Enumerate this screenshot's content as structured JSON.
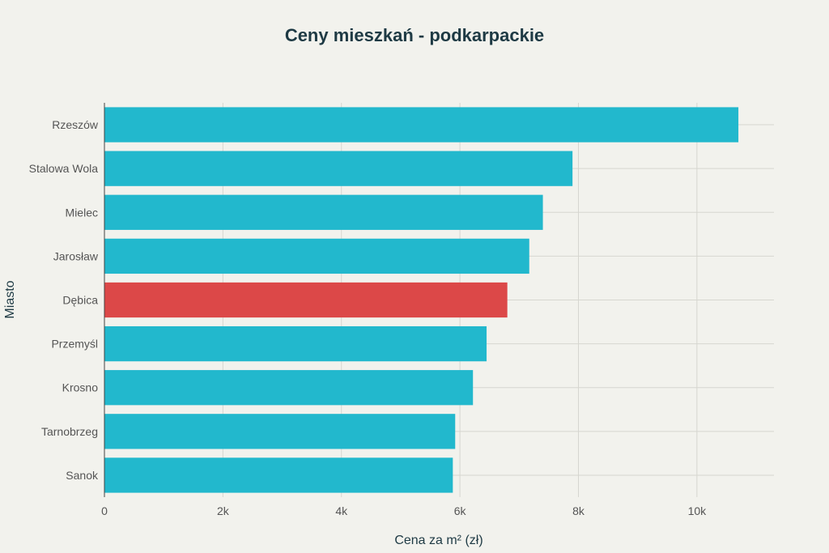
{
  "chart_data": {
    "type": "bar",
    "orientation": "horizontal",
    "title": "Ceny mieszkań - podkarpackie",
    "xlabel": "Cena za m² (zł)",
    "ylabel": "Miasto",
    "xlim": [
      0,
      11300
    ],
    "x_ticks": [
      0,
      2000,
      4000,
      6000,
      8000,
      10000
    ],
    "x_tick_labels": [
      "0",
      "2k",
      "4k",
      "6k",
      "8k",
      "10k"
    ],
    "grid": true,
    "categories": [
      "Rzeszów",
      "Stalowa Wola",
      "Mielec",
      "Jarosław",
      "Dębica",
      "Przemyśl",
      "Krosno",
      "Tarnobrzeg",
      "Sanok"
    ],
    "values": [
      10700,
      7900,
      7400,
      7170,
      6800,
      6450,
      6220,
      5920,
      5880
    ],
    "highlight": "Dębica",
    "colors": {
      "default": "#22b8cd",
      "highlight": "#dc4848"
    }
  }
}
